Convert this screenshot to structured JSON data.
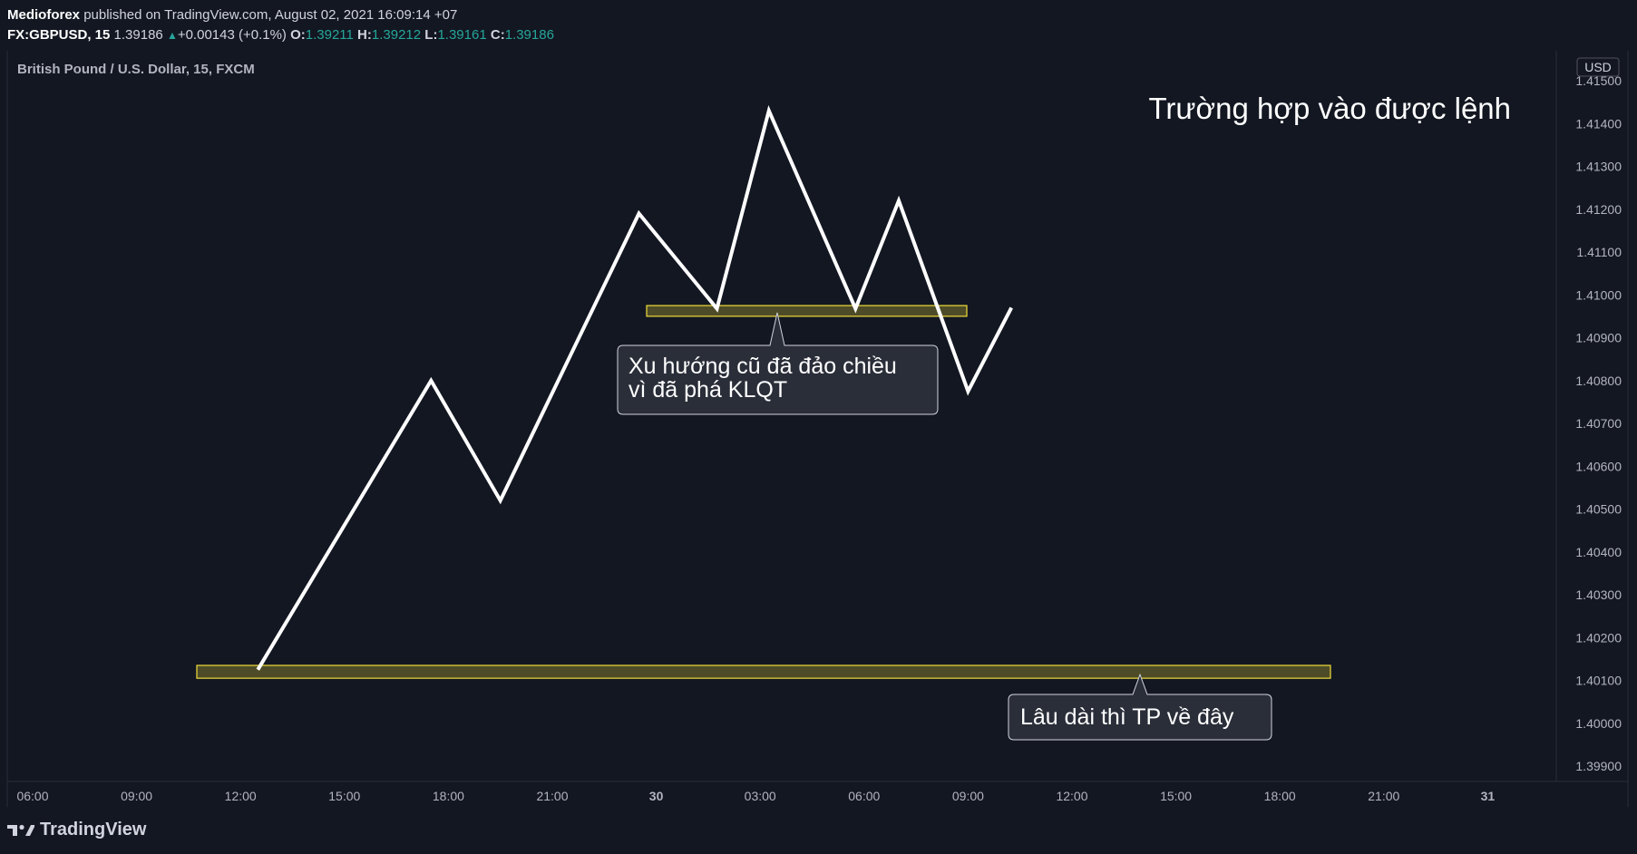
{
  "header": {
    "author": "Medioforex",
    "published_text": "published on TradingView.com, August 02, 2021 16:09:14 +07",
    "symbol": "FX:GBPUSD, 15",
    "last_price": "1.39186",
    "change": "+0.00143 (+0.1%)",
    "open_label": "O:",
    "open": "1.39211",
    "high_label": "H:",
    "high": "1.39212",
    "low_label": "L:",
    "low": "1.39161",
    "close_label": "C:",
    "close": "1.39186"
  },
  "chart_data": {
    "type": "line",
    "instrument_label": "British Pound / U.S. Dollar, 15, FXCM",
    "currency_badge": "USD",
    "title": "Trường hợp vào được lệnh",
    "ylim": [
      1.3985,
      1.4156
    ],
    "x_ticks": [
      "06:00",
      "09:00",
      "12:00",
      "15:00",
      "18:00",
      "21:00",
      "30",
      "03:00",
      "06:00",
      "09:00",
      "12:00",
      "15:00",
      "18:00",
      "21:00",
      "31"
    ],
    "x_tick_bold": [
      false,
      false,
      false,
      false,
      false,
      false,
      true,
      false,
      false,
      false,
      false,
      false,
      false,
      false,
      true
    ],
    "y_ticks": [
      "1.41500",
      "1.41400",
      "1.41300",
      "1.41200",
      "1.41100",
      "1.41000",
      "1.40900",
      "1.40800",
      "1.40700",
      "1.40600",
      "1.40500",
      "1.40400",
      "1.40300",
      "1.40200",
      "1.40100",
      "1.40000",
      "1.39900"
    ],
    "series": [
      {
        "x": [
          "12:30",
          "17:30",
          "19:30",
          "23:30",
          "01:45",
          "03:15",
          "05:45",
          "07:00",
          "09:00",
          "10:15"
        ],
        "values": [
          1.40125,
          1.408,
          1.4052,
          1.4119,
          1.40968,
          1.4143,
          1.40968,
          1.4122,
          1.40775,
          1.4097
        ],
        "color": "#ffffff"
      }
    ],
    "zones": [
      {
        "name": "recent-support-zone",
        "x_start": "29.75 (day 29, ~23:45)",
        "y_top": 1.40975,
        "y_bottom": 1.4095,
        "label": "Xu hướng cũ đã đảo chiều\nvì đã phá KLQT",
        "label_lines": [
          "Xu hướng cũ đã đảo chiều",
          "vì đã phá KLQT"
        ]
      },
      {
        "name": "long-term-tp-zone",
        "y_top": 1.40135,
        "y_bottom": 1.40105,
        "label_lines": [
          "Lâu dài thì TP về đây"
        ]
      }
    ],
    "zone_fill": "#ffeb3b",
    "zone_border": "#f0dc3a",
    "callout_bg": "#2a2e39",
    "callout_border": "#d1d4dc",
    "grid": false,
    "background": "#131722",
    "axis_text_color": "#b2b5be"
  },
  "branding": {
    "logo_text": "TradingView",
    "logo_icon": "tradingview-logo-icon"
  }
}
